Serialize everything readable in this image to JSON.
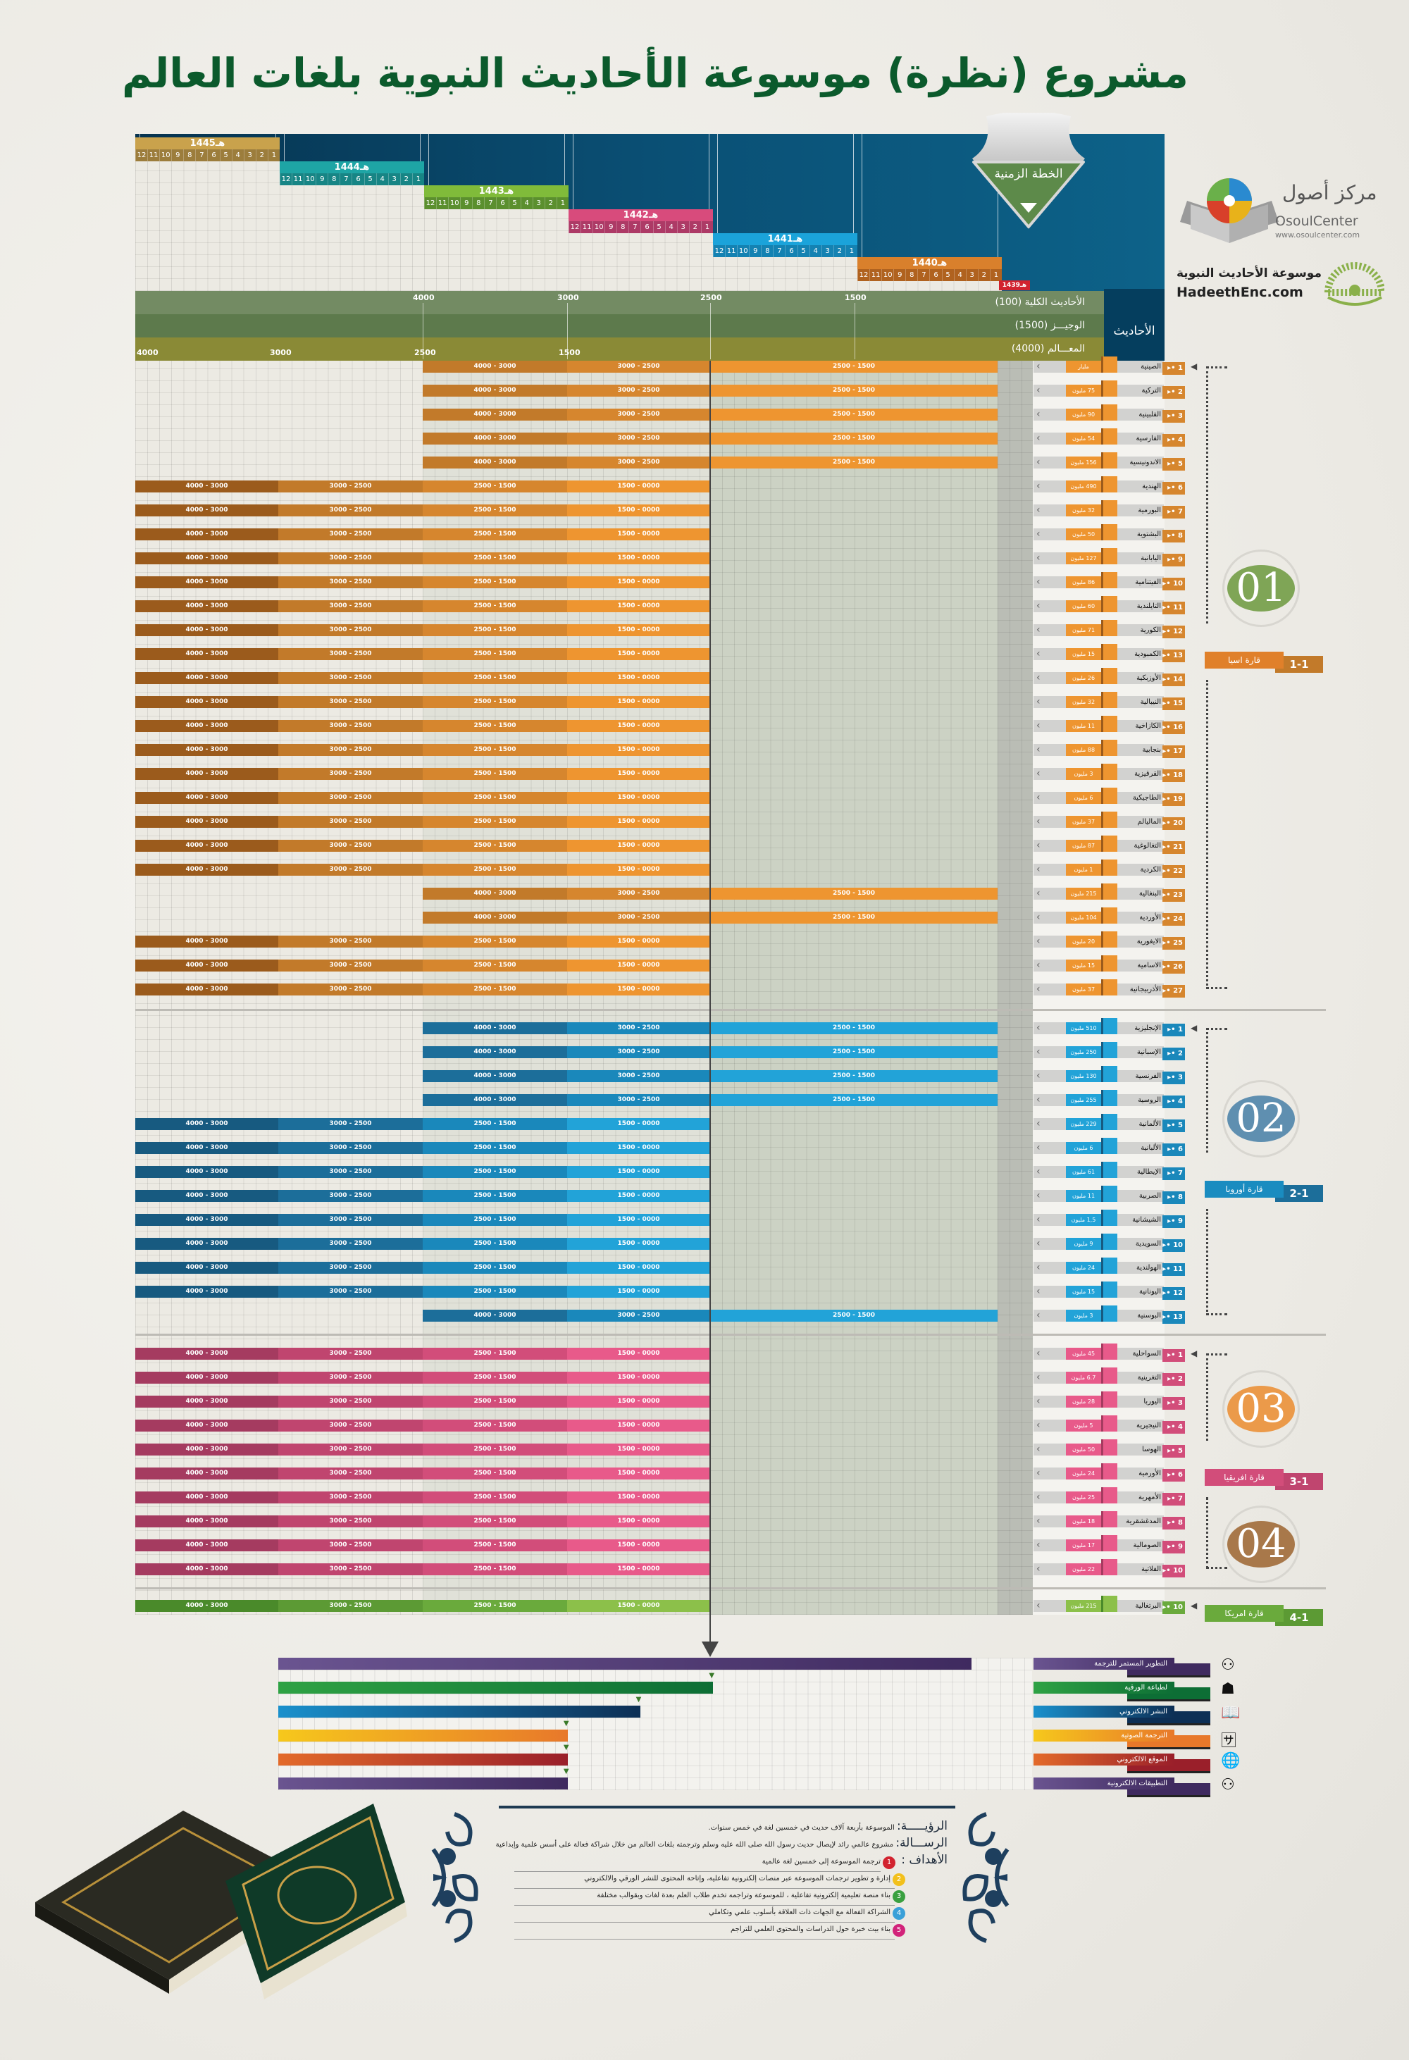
{
  "title": "مشروع (نظرة) موسوعة الأحاديث النبوية بلغات العالم",
  "timeline_badge": "الخطة الزمنية",
  "logos": {
    "osoul_ar": "مركز أصول",
    "osoul_en": "OsoulCenter",
    "osoul_url": "www.osoulcenter.com",
    "hadeeth_ar": "موسوعة الأحاديث النبوية",
    "hadeeth_en": "HadeethEnc.com"
  },
  "years": [
    {
      "label": "1445هـ",
      "color": "#c9a24c",
      "months_color": "#9c7d3c"
    },
    {
      "label": "1444هـ",
      "color": "#1ea5a5",
      "months_color": "#178585"
    },
    {
      "label": "1443هـ",
      "color": "#80bb3a",
      "months_color": "#5b8f2e"
    },
    {
      "label": "1442هـ",
      "color": "#d84b7c",
      "months_color": "#ad3a66"
    },
    {
      "label": "1441هـ",
      "color": "#1ba3da",
      "months_color": "#1482b2"
    },
    {
      "label": "1440هـ",
      "color": "#d9802c",
      "months_color": "#b0621f"
    }
  ],
  "last_year": {
    "label": "1439هـ",
    "color": "#d2232f"
  },
  "months": [
    "12",
    "11",
    "10",
    "9",
    "8",
    "7",
    "6",
    "5",
    "4",
    "3",
    "2",
    "1"
  ],
  "hadith_header": {
    "column": "الأحاديث",
    "bands": [
      "الأحاديث الكلية (100)",
      "الوجيـــز (1500)",
      "المعـــالم (4000)"
    ],
    "top_ticks": [
      "4000",
      "3000",
      "2500",
      "1500"
    ],
    "bottom_ticks": [
      "4000",
      "3000",
      "2500",
      "1500"
    ]
  },
  "segments": {
    "late": [
      "4000 - 3000",
      "3000 - 2500",
      "2500 - 1500"
    ],
    "early": [
      "4000 - 3000",
      "3000 - 2500",
      "2500 - 1500",
      "1500 - 0000"
    ]
  },
  "continents": [
    {
      "id": "asia",
      "badge": "01",
      "label": "قارة اسيا",
      "code": "1-1",
      "circle": "#7fa556",
      "accent": "#e0802a",
      "seg_colors": [
        "#9b5b1c",
        "#c27a2a",
        "#d6862e",
        "#ee9530"
      ],
      "rows": [
        {
          "n": "1",
          "name": "الصينية",
          "speakers": "مليار",
          "schedule": "late"
        },
        {
          "n": "2",
          "name": "التركية",
          "speakers": "75 مليون",
          "schedule": "late"
        },
        {
          "n": "3",
          "name": "الفلبينية",
          "speakers": "90 مليون",
          "schedule": "late"
        },
        {
          "n": "4",
          "name": "الفارسية",
          "speakers": "54 مليون",
          "schedule": "late"
        },
        {
          "n": "5",
          "name": "الاندونيسية",
          "speakers": "156 مليون",
          "schedule": "late"
        },
        {
          "n": "6",
          "name": "الهندية",
          "speakers": "490 مليون",
          "schedule": "early"
        },
        {
          "n": "7",
          "name": "البورمية",
          "speakers": "32 مليون",
          "schedule": "early"
        },
        {
          "n": "8",
          "name": "البشتوية",
          "speakers": "50 مليون",
          "schedule": "early"
        },
        {
          "n": "9",
          "name": "اليابانية",
          "speakers": "127 مليون",
          "schedule": "early"
        },
        {
          "n": "10",
          "name": "الفيتنامية",
          "speakers": "86 مليون",
          "schedule": "early"
        },
        {
          "n": "11",
          "name": "التايلندية",
          "speakers": "60 مليون",
          "schedule": "early"
        },
        {
          "n": "12",
          "name": "الكورية",
          "speakers": "71 مليون",
          "schedule": "early"
        },
        {
          "n": "13",
          "name": "الكمبودية",
          "speakers": "15 مليون",
          "schedule": "early"
        },
        {
          "n": "14",
          "name": "الأوزبكية",
          "speakers": "26 مليون",
          "schedule": "early"
        },
        {
          "n": "15",
          "name": "النيبالية",
          "speakers": "32 مليون",
          "schedule": "early"
        },
        {
          "n": "16",
          "name": "الكازاخية",
          "speakers": "11 مليون",
          "schedule": "early"
        },
        {
          "n": "17",
          "name": "بنجابية",
          "speakers": "88 مليون",
          "schedule": "early"
        },
        {
          "n": "18",
          "name": "القرقيزية",
          "speakers": "3 مليون",
          "schedule": "early"
        },
        {
          "n": "19",
          "name": "الطاجيكية",
          "speakers": "6 مليون",
          "schedule": "early"
        },
        {
          "n": "20",
          "name": "الماليالم",
          "speakers": "37 مليون",
          "schedule": "early"
        },
        {
          "n": "21",
          "name": "التغالوغية",
          "speakers": "87 مليون",
          "schedule": "early"
        },
        {
          "n": "22",
          "name": "الكردية",
          "speakers": "1 مليون",
          "schedule": "early"
        },
        {
          "n": "23",
          "name": "البنغالية",
          "speakers": "215 مليون",
          "schedule": "late"
        },
        {
          "n": "24",
          "name": "الأوردية",
          "speakers": "104 مليون",
          "schedule": "late"
        },
        {
          "n": "25",
          "name": "الايغورية",
          "speakers": "20 مليون",
          "schedule": "early"
        },
        {
          "n": "26",
          "name": "الاسامية",
          "speakers": "15 مليون",
          "schedule": "early"
        },
        {
          "n": "27",
          "name": "الأذربيجانية",
          "speakers": "37 مليون",
          "schedule": "early"
        }
      ]
    },
    {
      "id": "europe",
      "badge": "02",
      "label": "قارة أوروبا",
      "code": "2-1",
      "circle": "#5f8fb0",
      "accent": "#1a8cc0",
      "seg_colors": [
        "#175a80",
        "#1c6e9a",
        "#1a88bb",
        "#22a3d8"
      ],
      "rows": [
        {
          "n": "1",
          "name": "الإنجليزية",
          "speakers": "510 مليون",
          "schedule": "late"
        },
        {
          "n": "2",
          "name": "الإسبانية",
          "speakers": "250 مليون",
          "schedule": "late"
        },
        {
          "n": "3",
          "name": "الفرنسية",
          "speakers": "130 مليون",
          "schedule": "late"
        },
        {
          "n": "4",
          "name": "الروسية",
          "speakers": "255 مليون",
          "schedule": "late"
        },
        {
          "n": "5",
          "name": "الألمانية",
          "speakers": "229 مليون",
          "schedule": "early"
        },
        {
          "n": "6",
          "name": "الألبانية",
          "speakers": "6 مليون",
          "schedule": "early"
        },
        {
          "n": "7",
          "name": "الإيطالية",
          "speakers": "61 مليون",
          "schedule": "early"
        },
        {
          "n": "8",
          "name": "الصربية",
          "speakers": "11 مليون",
          "schedule": "early"
        },
        {
          "n": "9",
          "name": "الشيشانية",
          "speakers": "1,5 مليون",
          "schedule": "early"
        },
        {
          "n": "10",
          "name": "السويدية",
          "speakers": "9 مليون",
          "schedule": "early"
        },
        {
          "n": "11",
          "name": "الهولندية",
          "speakers": "24 مليون",
          "schedule": "early"
        },
        {
          "n": "12",
          "name": "اليونانية",
          "speakers": "15 مليون",
          "schedule": "early"
        },
        {
          "n": "13",
          "name": "البوسنية",
          "speakers": "3 مليون",
          "schedule": "late"
        }
      ]
    },
    {
      "id": "africa",
      "badge": "03",
      "label": "قارة افريقيا",
      "code": "3-1",
      "circle": "#eb9a4a",
      "accent": "#d24d7a",
      "seg_colors": [
        "#a53b60",
        "#c0456f",
        "#d24d7a",
        "#e85a8a"
      ],
      "rows": [
        {
          "n": "1",
          "name": "السواحلية",
          "speakers": "45 مليون",
          "schedule": "early"
        },
        {
          "n": "2",
          "name": "التغرينية",
          "speakers": "6.7 مليون",
          "schedule": "early"
        },
        {
          "n": "3",
          "name": "اليوربا",
          "speakers": "28 مليون",
          "schedule": "early"
        },
        {
          "n": "4",
          "name": "النيجيرية",
          "speakers": "5 مليون",
          "schedule": "early"
        },
        {
          "n": "5",
          "name": "الهوسا",
          "speakers": "50 مليون",
          "schedule": "early"
        },
        {
          "n": "6",
          "name": "الأورمية",
          "speakers": "24 مليون",
          "schedule": "early"
        },
        {
          "n": "7",
          "name": "الأمهرية",
          "speakers": "25 مليون",
          "schedule": "early"
        },
        {
          "n": "8",
          "name": "المدغشقرية",
          "speakers": "18 مليون",
          "schedule": "early"
        },
        {
          "n": "9",
          "name": "الصومالية",
          "speakers": "17 مليون",
          "schedule": "early"
        },
        {
          "n": "10",
          "name": "الفلاتية",
          "speakers": "22 مليون",
          "schedule": "early"
        }
      ]
    },
    {
      "id": "america",
      "badge": "04",
      "label": "قارة امريكا",
      "code": "4-1",
      "circle": "#a8784a",
      "accent": "#6aaa3c",
      "seg_colors": [
        "#4a8a2a",
        "#5c9a34",
        "#6aaa3c",
        "#8cc04a"
      ],
      "rows": [
        {
          "n": "10",
          "name": "البرتغالية",
          "speakers": "215 مليون",
          "schedule": "early"
        }
      ]
    }
  ],
  "workstreams": [
    {
      "label": "التطوير المستمر للترجمة",
      "icon": "people-network-icon",
      "progress": 0.92,
      "c1": "#6a5490",
      "c2": "#3f2a5f"
    },
    {
      "label": "لطباعة الورقية",
      "icon": "reading-icon",
      "progress": 0.577,
      "c1": "#2ea244",
      "c2": "#0d6e35"
    },
    {
      "label": "النشر الالكتروني",
      "icon": "book-icon",
      "progress": 0.48,
      "c1": "#1a90cc",
      "c2": "#0d2f55"
    },
    {
      "label": "الترجمة الصوتية",
      "icon": "audio-translate-icon",
      "progress": 0.384,
      "c1": "#f6c81c",
      "c2": "#e8782a"
    },
    {
      "label": "الموقع الالكتروني",
      "icon": "www-globe-icon",
      "progress": 0.384,
      "c1": "#e36a2a",
      "c2": "#9a1f2a"
    },
    {
      "label": "التطبيقات الالكترونية",
      "icon": "people-network-icon",
      "progress": 0.384,
      "c1": "#6a5490",
      "c2": "#3f2a5f"
    }
  ],
  "about": {
    "vision_label": "الرؤيـــــة:",
    "vision": "الموسوعة بأربعة آلاف حديث في خمسين لغة في خمس سنوات.",
    "mission_label": "الرســـالة:",
    "mission": "مشروع عالمي رائد لإيصال حديث رسول الله صلى الله عليه وسلم وترجمته بلغات العالم من خلال شراكة فعالة على أسس علمية وإبداعية",
    "goals_label": "الأهداف :",
    "goals": [
      {
        "n": "1",
        "text": "ترجمة الموسوعة إلى خمسين لغة عالمية",
        "color": "#d2232f"
      },
      {
        "n": "2",
        "text": "إدارة و تطوير ترجمات الموسوعة عبر منصات إلكترونية تفاعلية، وإتاحة المحتوى للنشر الورقي والالكتروني",
        "color": "#f2c01c"
      },
      {
        "n": "3",
        "text": "بناء منصة تعليمية إلكترونية تفاعلية ، للموسوعة وتراجمه تخدم طلاب العلم بعدة لغات وبقوالب مختلفة",
        "color": "#3aa040"
      },
      {
        "n": "4",
        "text": "الشراكة الفعالة مع الجهات ذات العلاقة بأسلوب علمي وتكاملي",
        "color": "#3aa0d8"
      },
      {
        "n": "5",
        "text": "بناء بيت خبرة حول الدراسات والمحتوى العلمي للتراجم",
        "color": "#d2237a"
      }
    ]
  }
}
